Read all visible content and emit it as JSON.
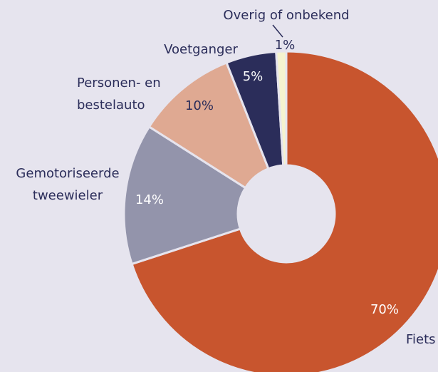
{
  "chart_data": {
    "type": "donut",
    "categories": [
      "Fiets",
      "Gemotoriseerde\ntweewieler",
      "Personen- en\nbestelauto",
      "Voetganger",
      "Overig of onbekend"
    ],
    "values": [
      70,
      14,
      10,
      5,
      1
    ],
    "value_labels": [
      "70%",
      "14%",
      "10%",
      "5%",
      "1%"
    ],
    "colors": [
      "#c8552e",
      "#9394ab",
      "#dfa992",
      "#2b2d5a",
      "#f5f3cf"
    ]
  }
}
